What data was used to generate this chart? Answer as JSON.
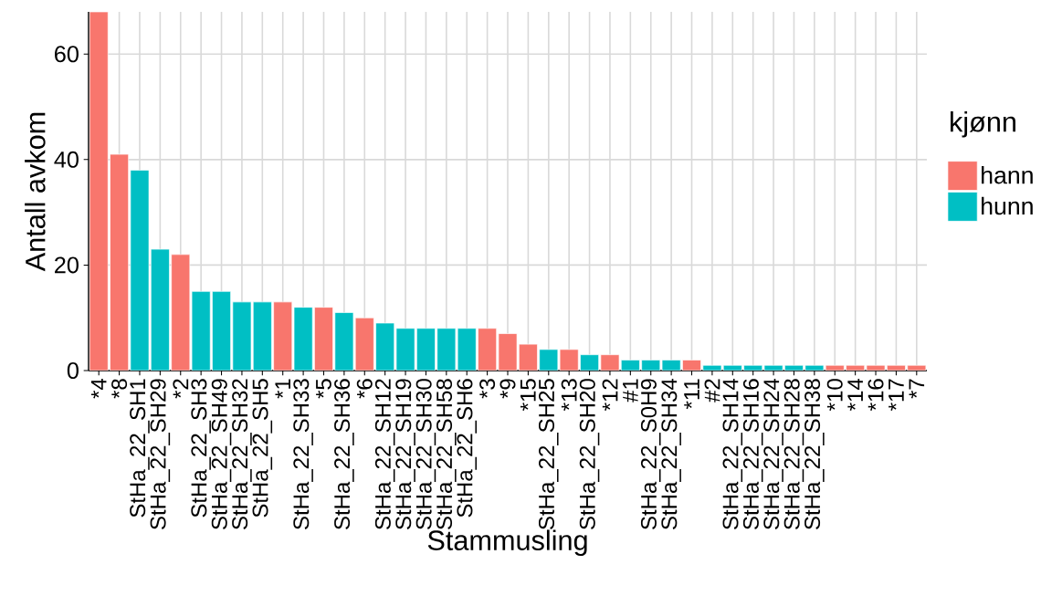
{
  "chart_data": {
    "type": "bar",
    "xlabel": "Stammusling",
    "ylabel": "Antall avkom",
    "legend_title": "kjønn",
    "categories": [
      "*4",
      "*8",
      "StHa_22_SH1",
      "StHa_22_SH29",
      "*2",
      "StHa_22_SH3",
      "StHa_22_SH49",
      "StHa_22_SH32",
      "StHa_22_SH5",
      "*1",
      "StHa_22_SH33",
      "*5",
      "StHa_22_SH36",
      "*6",
      "StHa_22_SH12",
      "StHa_22_SH19",
      "StHa_22_SH30",
      "StHa_22_SH58",
      "StHa_22_SH6",
      "*3",
      "*9",
      "*15",
      "StHa_22_SH25",
      "*13",
      "StHa_22_SH20",
      "*12",
      "#1",
      "StHa_22_S0H9",
      "StHa_22_SH34",
      "*11",
      "#2",
      "StHa_22_SH14",
      "StHa_22_SH16",
      "StHa_22_SH24",
      "StHa_22_SH28",
      "StHa_22_SH38",
      "*10",
      "*14",
      "*16",
      "*17",
      "*7"
    ],
    "series": [
      {
        "name": "hann",
        "color": "#f8766d",
        "values": [
          68,
          41,
          null,
          null,
          22,
          null,
          null,
          null,
          null,
          13,
          null,
          12,
          null,
          10,
          null,
          null,
          null,
          null,
          null,
          8,
          7,
          5,
          null,
          4,
          null,
          3,
          null,
          null,
          null,
          2,
          null,
          null,
          null,
          null,
          null,
          null,
          1,
          1,
          1,
          1,
          1
        ]
      },
      {
        "name": "hunn",
        "color": "#00bfc4",
        "values": [
          null,
          null,
          38,
          23,
          null,
          15,
          15,
          13,
          13,
          null,
          12,
          null,
          11,
          null,
          9,
          8,
          8,
          8,
          8,
          null,
          null,
          null,
          4,
          null,
          3,
          null,
          2,
          2,
          2,
          null,
          1,
          1,
          1,
          1,
          1,
          1,
          null,
          null,
          null,
          null,
          null
        ]
      }
    ],
    "ylim": [
      0,
      68
    ],
    "yticks": [
      0,
      20,
      40,
      60
    ],
    "grid": true,
    "legend": "right"
  }
}
